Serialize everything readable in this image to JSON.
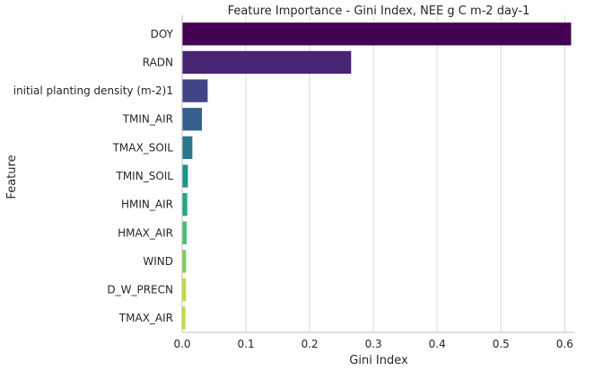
{
  "chart_data": {
    "type": "bar",
    "orientation": "horizontal",
    "title": "Feature Importance - Gini Index, NEE g C m-2 day-1",
    "xlabel": "Gini Index",
    "ylabel": "Feature",
    "xlim": [
      0,
      0.615
    ],
    "xticks": [
      0.0,
      0.1,
      0.2,
      0.3,
      0.4,
      0.5,
      0.6
    ],
    "xtick_labels": [
      "0.0",
      "0.1",
      "0.2",
      "0.3",
      "0.4",
      "0.5",
      "0.6"
    ],
    "grid": "vertical",
    "categories": [
      "DOY",
      "RADN",
      "initial planting density (m-2)1",
      "TMIN_AIR",
      "TMAX_SOIL",
      "TMIN_SOIL",
      "HMIN_AIR",
      "HMAX_AIR",
      "WIND",
      "D_W_PRECN",
      "TMAX_AIR"
    ],
    "values": [
      0.61,
      0.265,
      0.04,
      0.031,
      0.016,
      0.009,
      0.008,
      0.007,
      0.006,
      0.006,
      0.005
    ],
    "colors": [
      "#440154",
      "#482475",
      "#414487",
      "#355f8d",
      "#2a788e",
      "#21918c",
      "#22a884",
      "#44bf70",
      "#7ad151",
      "#bddf26",
      "#bddf26"
    ]
  }
}
